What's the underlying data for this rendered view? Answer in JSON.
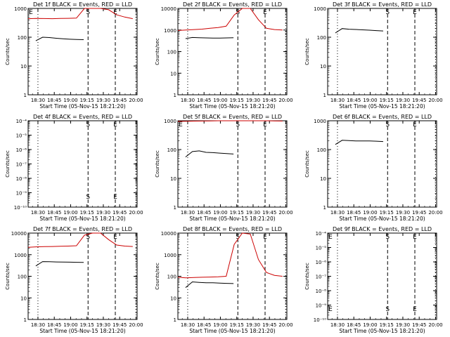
{
  "figure": {
    "background": "#ffffff",
    "axis_color": "#000000"
  },
  "chart_data": [
    {
      "type": "line",
      "title": "Det 1f BLACK = Events, RED = LLD",
      "xlabel": "Start Time (05-Nov-15 18:21:20)",
      "ylabel": "Counts/sec",
      "y_scale": "log",
      "ylim": [
        1,
        1000
      ],
      "yticks": [
        1,
        10,
        100,
        1000
      ],
      "ytick_labels": [
        "1",
        "10",
        "100",
        "1000"
      ],
      "x_ticks": [
        "18:30",
        "18:45",
        "19:00",
        "19:15",
        "19:30",
        "19:45",
        "20:00"
      ],
      "markers": [
        {
          "label": "E",
          "position": "18:21"
        },
        {
          "label": "S",
          "position": "19:16"
        },
        {
          "label": "E",
          "position": "19:41"
        }
      ],
      "series": [
        {
          "color": "#000000",
          "start": "18:28",
          "end": "19:12",
          "values": [
            75,
            100,
            97,
            92,
            88,
            85,
            83,
            82
          ]
        },
        {
          "color": "#cc0000",
          "start": "18:21",
          "end": "19:57",
          "values": [
            440,
            450,
            445,
            440,
            448,
            452,
            460,
            1000,
            1200,
            1100,
            900,
            600,
            500,
            440
          ]
        }
      ]
    },
    {
      "type": "line",
      "title": "Det 2f BLACK = Events, RED = LLD",
      "xlabel": "Start Time (05-Nov-15 18:21:20)",
      "ylabel": "Counts/sec",
      "y_scale": "log",
      "ylim": [
        1,
        10000
      ],
      "yticks": [
        1,
        10,
        100,
        1000,
        10000
      ],
      "ytick_labels": [
        "1",
        "10",
        "100",
        "1000",
        "10000"
      ],
      "x_ticks": [
        "18:30",
        "18:45",
        "19:00",
        "19:15",
        "19:30",
        "19:45",
        "20:00"
      ],
      "markers": [
        {
          "label": "S",
          "position": "19:16"
        },
        {
          "label": "E",
          "position": "19:41"
        }
      ],
      "series": [
        {
          "color": "#000000",
          "start": "18:28",
          "end": "19:12",
          "values": [
            400,
            450,
            440,
            430,
            425,
            420,
            430,
            440
          ]
        },
        {
          "color": "#cc0000",
          "start": "18:21",
          "end": "19:57",
          "values": [
            950,
            1000,
            1050,
            1100,
            1200,
            1300,
            1500,
            5000,
            12000,
            10000,
            3000,
            1200,
            1050,
            1000
          ]
        }
      ]
    },
    {
      "type": "line",
      "title": "Det 3f BLACK = Events, RED = LLD",
      "xlabel": "Start Time (05-Nov-15 18:21:20)",
      "ylabel": "Counts/sec",
      "y_scale": "log",
      "ylim": [
        1,
        1000
      ],
      "yticks": [
        1,
        10,
        100,
        1000
      ],
      "ytick_labels": [
        "1",
        "10",
        "100",
        "1000"
      ],
      "x_ticks": [
        "18:30",
        "18:45",
        "19:00",
        "19:15",
        "19:30",
        "19:45",
        "20:00"
      ],
      "markers": [
        {
          "label": "S",
          "position": "19:16"
        },
        {
          "label": "E",
          "position": "19:41"
        }
      ],
      "series": [
        {
          "color": "#000000",
          "start": "18:28",
          "end": "19:12",
          "values": [
            140,
            200,
            190,
            185,
            180,
            175,
            170,
            165
          ]
        }
      ]
    },
    {
      "type": "line",
      "title": "Det 4f BLACK = Events, RED = LLD",
      "xlabel": "Start Time (05-Nov-15 18:21:20)",
      "ylabel": "Counts/sec",
      "y_scale": "log",
      "ylim": [
        1e-10,
        0.0001
      ],
      "yticks": [
        1e-10,
        1e-09,
        1e-08,
        1e-07,
        1e-06,
        1e-05,
        0.0001
      ],
      "ytick_labels": [
        "10⁻¹⁰",
        "10⁻⁹",
        "10⁻⁸",
        "10⁻⁷",
        "10⁻⁶",
        "10⁻⁵",
        "10⁻⁴"
      ],
      "x_ticks": [
        "18:30",
        "18:45",
        "19:00",
        "19:15",
        "19:30",
        "19:45",
        "20:00"
      ],
      "markers": [
        {
          "label": "S",
          "position": "19:16"
        },
        {
          "label": "E",
          "position": "19:41"
        }
      ],
      "series": []
    },
    {
      "type": "line",
      "title": "Det 5f BLACK = Events, RED = LLD",
      "xlabel": "Start Time (05-Nov-15 18:21:20)",
      "ylabel": "Counts/sec",
      "y_scale": "log",
      "ylim": [
        1,
        1000
      ],
      "yticks": [
        1,
        10,
        100,
        1000
      ],
      "ytick_labels": [
        "1",
        "10",
        "100",
        "1000"
      ],
      "x_ticks": [
        "18:30",
        "18:45",
        "19:00",
        "19:15",
        "19:30",
        "19:45",
        "20:00"
      ],
      "markers": [
        {
          "label": "E",
          "position": "18:21"
        },
        {
          "label": "S",
          "position": "19:16"
        },
        {
          "label": "E",
          "position": "19:41"
        }
      ],
      "series": [
        {
          "color": "#000000",
          "start": "18:28",
          "end": "19:12",
          "values": [
            55,
            85,
            90,
            80,
            78,
            75,
            72,
            70
          ]
        },
        {
          "color": "#cc0000",
          "start": "18:21",
          "end": "19:57",
          "values": [
            950,
            960,
            970,
            980,
            990,
            1000,
            1000,
            1000,
            1000,
            1000,
            1000,
            1000,
            990,
            980
          ]
        }
      ]
    },
    {
      "type": "line",
      "title": "Det 6f BLACK = Events, RED = LLD",
      "xlabel": "Start Time (05-Nov-15 18:21:20)",
      "ylabel": "Counts/sec",
      "y_scale": "log",
      "ylim": [
        1,
        1000
      ],
      "yticks": [
        1,
        10,
        100,
        1000
      ],
      "ytick_labels": [
        "1",
        "10",
        "100",
        "1000"
      ],
      "x_ticks": [
        "18:30",
        "18:45",
        "19:00",
        "19:15",
        "19:30",
        "19:45",
        "20:00"
      ],
      "markers": [
        {
          "label": "S",
          "position": "19:16"
        },
        {
          "label": "E",
          "position": "19:41"
        }
      ],
      "series": [
        {
          "color": "#000000",
          "start": "18:28",
          "end": "19:12",
          "values": [
            150,
            210,
            205,
            200,
            200,
            198,
            195,
            190
          ]
        }
      ]
    },
    {
      "type": "line",
      "title": "Det 7f BLACK = Events, RED = LLD",
      "xlabel": "Start Time (05-Nov-15 18:21:20)",
      "ylabel": "Counts/sec",
      "y_scale": "log",
      "ylim": [
        1,
        10000
      ],
      "yticks": [
        1,
        10,
        100,
        1000,
        10000
      ],
      "ytick_labels": [
        "1",
        "10",
        "100",
        "1000",
        "10000"
      ],
      "x_ticks": [
        "18:30",
        "18:45",
        "19:00",
        "19:15",
        "19:30",
        "19:45",
        "20:00"
      ],
      "markers": [
        {
          "label": "S",
          "position": "19:16"
        },
        {
          "label": "E",
          "position": "19:41"
        }
      ],
      "series": [
        {
          "color": "#000000",
          "start": "18:28",
          "end": "19:12",
          "values": [
            300,
            480,
            470,
            460,
            455,
            450,
            445,
            440
          ]
        },
        {
          "color": "#cc0000",
          "start": "18:21",
          "end": "19:57",
          "values": [
            2200,
            2300,
            2350,
            2400,
            2450,
            2500,
            2600,
            8000,
            12000,
            10000,
            5000,
            2800,
            2500,
            2400
          ]
        }
      ]
    },
    {
      "type": "line",
      "title": "Det 8f BLACK = Events, RED = LLD",
      "xlabel": "Start Time (05-Nov-15 18:21:20)",
      "ylabel": "Counts/sec",
      "y_scale": "log",
      "ylim": [
        1,
        10000
      ],
      "yticks": [
        1,
        10,
        100,
        1000,
        10000
      ],
      "ytick_labels": [
        "1",
        "10",
        "100",
        "1000",
        "10000"
      ],
      "x_ticks": [
        "18:30",
        "18:45",
        "19:00",
        "19:15",
        "19:30",
        "19:45",
        "20:00"
      ],
      "markers": [
        {
          "label": "S",
          "position": "19:16"
        },
        {
          "label": "E",
          "position": "19:41"
        }
      ],
      "series": [
        {
          "color": "#000000",
          "start": "18:28",
          "end": "19:12",
          "values": [
            30,
            55,
            52,
            50,
            50,
            48,
            47,
            46
          ]
        },
        {
          "color": "#cc0000",
          "start": "18:21",
          "end": "19:57",
          "values": [
            90,
            85,
            88,
            90,
            92,
            95,
            100,
            3000,
            10000,
            9000,
            600,
            150,
            110,
            100
          ]
        }
      ]
    },
    {
      "type": "line",
      "title": "Det 9f BLACK = Events, RED = LLD",
      "xlabel": "Start Time (05-Nov-15 18:21:20)",
      "ylabel": "Counts/sec",
      "y_scale": "log",
      "ylim": [
        1e-10,
        0.0001
      ],
      "yticks": [
        1e-10,
        1e-09,
        1e-08,
        1e-07,
        1e-06,
        1e-05,
        0.0001
      ],
      "ytick_labels": [
        "10⁻¹⁰",
        "10⁻⁹",
        "10⁻⁸",
        "10⁻⁷",
        "10⁻⁶",
        "10⁻⁵",
        "10⁻⁴"
      ],
      "x_ticks": [
        "18:30",
        "18:45",
        "19:00",
        "19:15",
        "19:30",
        "19:45",
        "20:00"
      ],
      "markers": [
        {
          "label": "E",
          "position": "18:21"
        },
        {
          "label": "S",
          "position": "19:16"
        },
        {
          "label": "E",
          "position": "19:41"
        }
      ],
      "series": []
    }
  ]
}
